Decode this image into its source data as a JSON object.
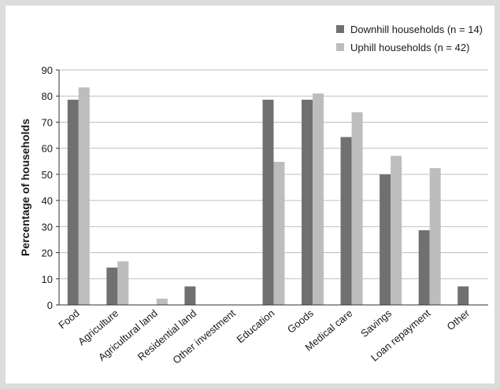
{
  "chart_data": {
    "type": "bar",
    "title": "",
    "xlabel": "",
    "ylabel": "Percentage of households",
    "ylim": [
      0,
      90
    ],
    "yticks": [
      0,
      10,
      20,
      30,
      40,
      50,
      60,
      70,
      80,
      90
    ],
    "grid": true,
    "legend_position": "top-right",
    "categories": [
      "Food",
      "Agriculture",
      "Agricultural land",
      "Residential land",
      "Other investment",
      "Education",
      "Goods",
      "Medical care",
      "Savings",
      "Loan repayment",
      "Other"
    ],
    "series": [
      {
        "name": "Downhill households (n = 14)",
        "color": "#707070",
        "values": [
          78.6,
          14.3,
          0,
          7.1,
          0,
          78.6,
          78.6,
          64.3,
          50.0,
          28.6,
          7.1
        ]
      },
      {
        "name": "Uphill households (n = 42)",
        "color": "#bdbdbd",
        "values": [
          83.3,
          16.7,
          2.4,
          0,
          0,
          54.8,
          81.0,
          73.8,
          57.1,
          52.4,
          0
        ]
      }
    ]
  }
}
